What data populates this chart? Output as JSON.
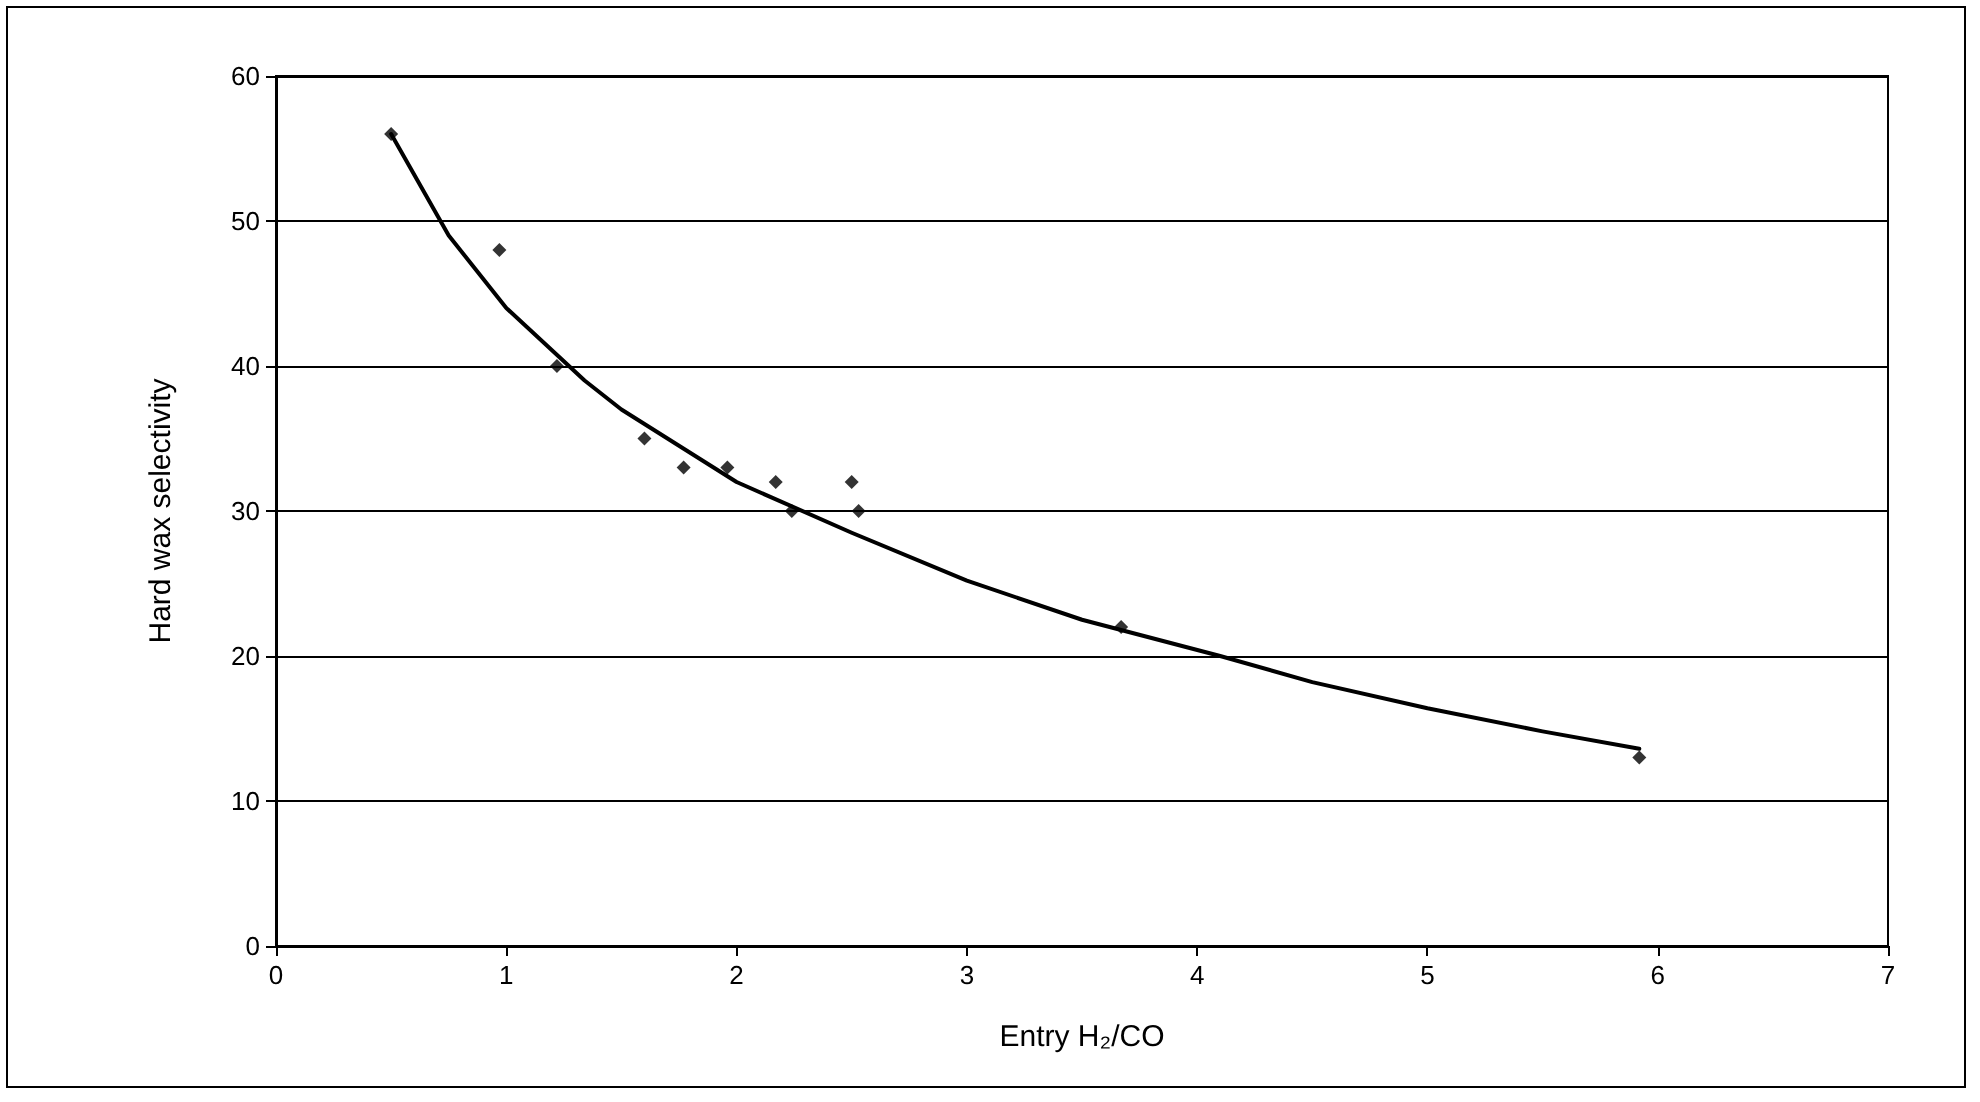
{
  "chart_data": {
    "type": "scatter",
    "xlabel": "Entry H₂/CO",
    "ylabel": "Hard wax selectivity",
    "xlim": [
      0,
      7
    ],
    "xticks": [
      0,
      1,
      2,
      3,
      4,
      5,
      6,
      7
    ],
    "ylim": [
      0,
      60
    ],
    "yticks": [
      0,
      10,
      20,
      30,
      40,
      50,
      60
    ],
    "grid": "y",
    "series": [
      {
        "marker": "diamond",
        "color": "#000000",
        "x": [
          0.5,
          0.97,
          1.22,
          1.6,
          1.77,
          1.96,
          2.17,
          2.24,
          2.5,
          2.53,
          3.67,
          5.92
        ],
        "values": [
          56,
          48,
          40,
          35,
          33,
          33,
          32,
          30,
          32,
          30,
          22,
          13
        ]
      },
      {
        "type": "line",
        "marker": "none",
        "line_style": "solid",
        "color": "#000000",
        "x": [
          0.5,
          0.75,
          1,
          1.34,
          1.5,
          2,
          2.5,
          3,
          3.5,
          4.1,
          4.5,
          5,
          5.5,
          5.92
        ],
        "values": [
          56,
          49,
          44,
          39,
          37,
          32,
          28.5,
          25.2,
          22.5,
          20,
          18.2,
          16.4,
          14.8,
          13.6
        ]
      }
    ]
  }
}
